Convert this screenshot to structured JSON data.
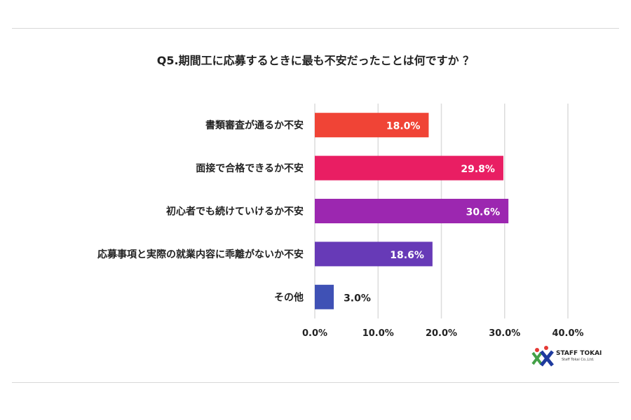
{
  "chart_data": {
    "type": "bar",
    "orientation": "horizontal",
    "title": "Q5.期間工に応募するときに最も不安だったことは何ですか ？",
    "categories": [
      "書類審査が通るか不安",
      "面接で合格できるか不安",
      "初心者でも続けていけるか不安",
      "応募事項と実際の就業内容に乖離がないか不安",
      "その他"
    ],
    "values": [
      18.0,
      29.8,
      30.6,
      18.6,
      3.0
    ],
    "data_labels": [
      "18.0%",
      "29.8%",
      "30.6%",
      "18.6%",
      "3.0%"
    ],
    "colors": [
      "#f04436",
      "#e91e63",
      "#9c27b0",
      "#673ab7",
      "#3f51b5"
    ],
    "xlim": [
      0,
      40
    ],
    "xticks": [
      0,
      10,
      20,
      30,
      40
    ],
    "xtick_labels": [
      "0.0%",
      "10.0%",
      "20.0%",
      "30.0%",
      "40.0%"
    ],
    "grid": true,
    "xlabel": "",
    "ylabel": ""
  },
  "logo": {
    "name": "STAFF TOKAI",
    "sub": "Staff Tokai Co.,Ltd."
  }
}
